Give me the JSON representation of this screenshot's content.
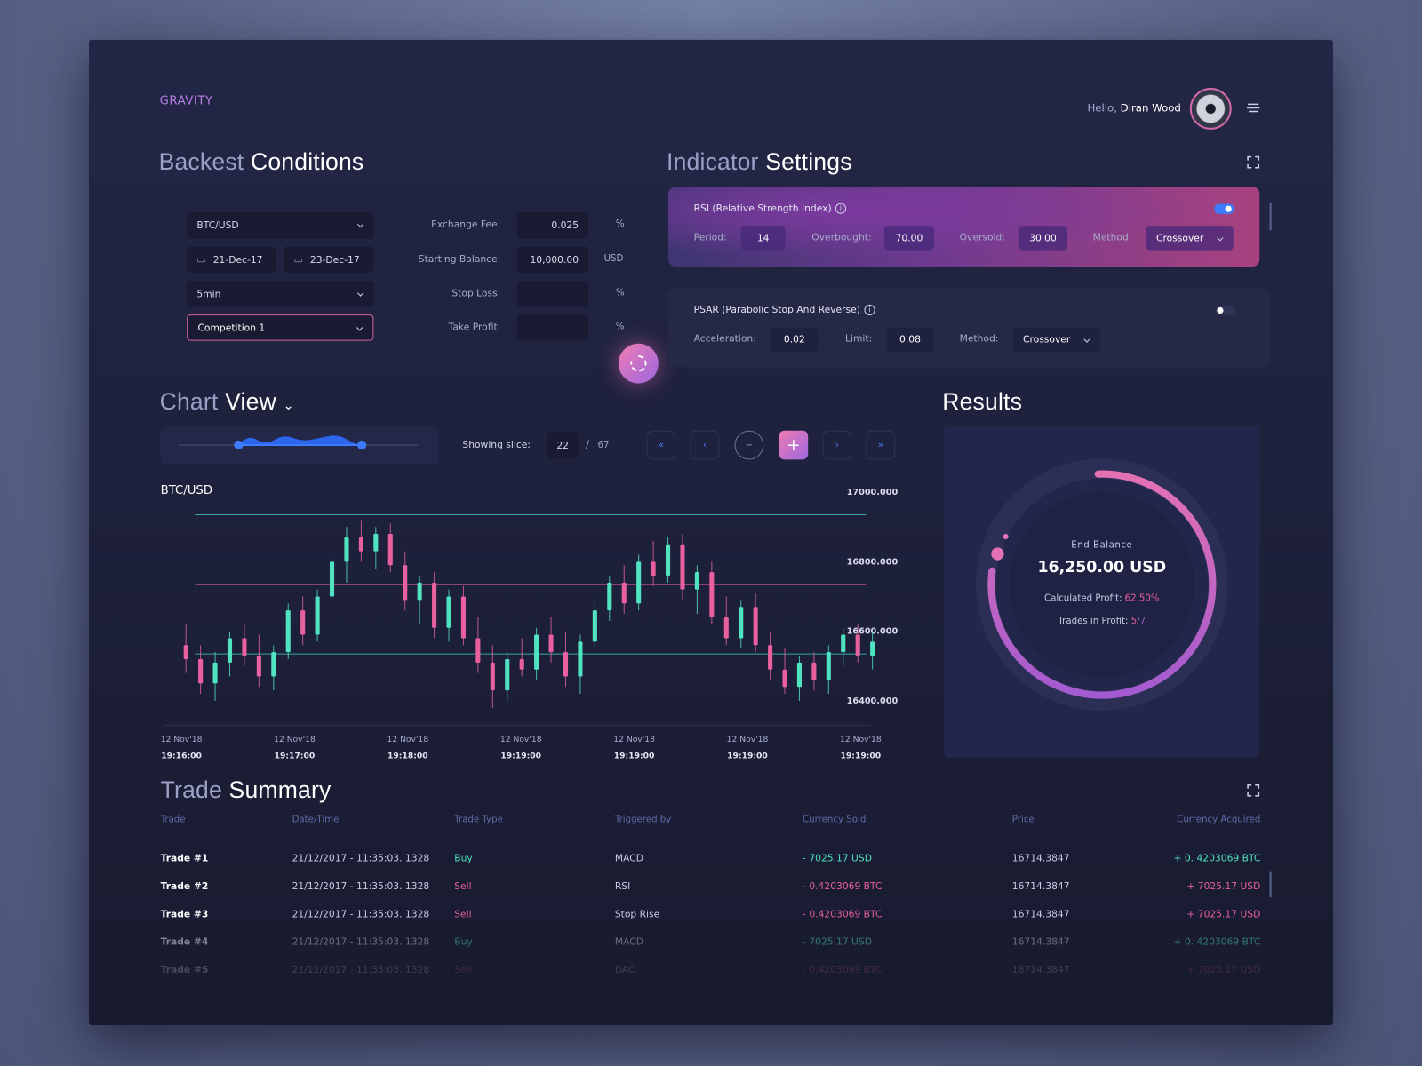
{
  "header": {
    "brand": "GRAVITY",
    "greeting": "Hello,",
    "user": "Diran Wood"
  },
  "backtest": {
    "title_light": "Backest",
    "title_bold": "Conditions",
    "pair": "BTC/USD",
    "date_from": "21-Dec-17",
    "date_to": "23-Dec-17",
    "interval": "5min",
    "competition": "Competition 1",
    "fields": [
      {
        "label": "Exchange Fee:",
        "value": "0.025",
        "unit": "%"
      },
      {
        "label": "Starting Balance:",
        "value": "10,000.00",
        "unit": "USD"
      },
      {
        "label": "Stop Loss:",
        "unit": "%"
      },
      {
        "label": "Take Profit:",
        "unit": "%"
      }
    ]
  },
  "indicators": {
    "title_light": "Indicator",
    "title_bold": "Settings",
    "items": [
      {
        "name": "RSI (Relative Strength Index)",
        "enabled": true,
        "params": [
          {
            "label": "Period:",
            "value": "14"
          },
          {
            "label": "Overbought:",
            "value": "70.00"
          },
          {
            "label": "Oversold:",
            "value": "30.00"
          }
        ],
        "method_label": "Method:",
        "method": "Crossover"
      },
      {
        "name": "PSAR (Parabolic Stop And Reverse)",
        "enabled": false,
        "params": [
          {
            "label": "Acceleration:",
            "value": "0.02"
          },
          {
            "label": "Limit:",
            "value": "0.08"
          }
        ],
        "method_label": "Method:",
        "method": "Crossover"
      }
    ]
  },
  "chart_view": {
    "title_light": "Chart",
    "title_bold": "View",
    "slice_label": "Showing slice:",
    "slice": "22",
    "separator": "/",
    "slice_total": "67"
  },
  "chart_data": {
    "type": "candlestick",
    "title": "BTC/USD",
    "up_color": "#4fe3c1",
    "down_color": "#e8609f",
    "ylim": [
      16330,
      17000
    ],
    "yticks": [
      {
        "value": 17000,
        "label": "17000.000"
      },
      {
        "value": 16800,
        "label": "16800.000"
      },
      {
        "value": 16600,
        "label": "16600.000"
      },
      {
        "value": 16400,
        "label": "16400.000"
      }
    ],
    "xticks": [
      {
        "date": "12 Nov'18",
        "time": "19:16:00"
      },
      {
        "date": "12 Nov'18",
        "time": "19:17:00"
      },
      {
        "date": "12 Nov'18",
        "time": "19:18:00"
      },
      {
        "date": "12 Nov'18",
        "time": "19:19:00"
      },
      {
        "date": "12 Nov'18",
        "time": "19:19:00"
      },
      {
        "date": "12 Nov'18",
        "time": "19:19:00"
      },
      {
        "date": "12 Nov'18",
        "time": "19:19:00"
      }
    ],
    "levels": [
      {
        "value": 16935,
        "color": "#3ec9c0"
      },
      {
        "value": 16735,
        "color": "#d65a98"
      },
      {
        "value": 16535,
        "color": "#3ec9c0"
      }
    ],
    "open": [
      16560,
      16520,
      16450,
      16510,
      16580,
      16530,
      16470,
      16540,
      16660,
      16590,
      16700,
      16800,
      16870,
      16830,
      16880,
      16790,
      16690,
      16740,
      16610,
      16700,
      16580,
      16510,
      16430,
      16520,
      16490,
      16590,
      16540,
      16470,
      16570,
      16660,
      16740,
      16680,
      16800,
      16760,
      16850,
      16720,
      16770,
      16640,
      16580,
      16670,
      16560,
      16490,
      16440,
      16510,
      16460,
      16540,
      16590,
      16530
    ],
    "high": [
      16620,
      16560,
      16540,
      16600,
      16620,
      16590,
      16560,
      16680,
      16700,
      16720,
      16820,
      16900,
      16920,
      16900,
      16910,
      16830,
      16760,
      16770,
      16720,
      16730,
      16640,
      16560,
      16540,
      16580,
      16610,
      16640,
      16600,
      16590,
      16680,
      16760,
      16790,
      16820,
      16860,
      16870,
      16880,
      16790,
      16800,
      16700,
      16690,
      16710,
      16600,
      16550,
      16530,
      16540,
      16560,
      16610,
      16620,
      16600
    ],
    "low": [
      16480,
      16420,
      16400,
      16470,
      16500,
      16440,
      16430,
      16520,
      16560,
      16570,
      16680,
      16740,
      16800,
      16780,
      16770,
      16660,
      16620,
      16580,
      16570,
      16560,
      16480,
      16380,
      16400,
      16470,
      16460,
      16510,
      16440,
      16420,
      16550,
      16630,
      16650,
      16660,
      16730,
      16740,
      16690,
      16650,
      16620,
      16560,
      16550,
      16540,
      16460,
      16420,
      16400,
      16430,
      16420,
      16500,
      16510,
      16490
    ],
    "close": [
      16520,
      16450,
      16510,
      16580,
      16530,
      16470,
      16540,
      16660,
      16590,
      16700,
      16800,
      16870,
      16830,
      16880,
      16790,
      16690,
      16740,
      16610,
      16700,
      16580,
      16510,
      16430,
      16520,
      16490,
      16590,
      16540,
      16470,
      16570,
      16660,
      16740,
      16680,
      16800,
      16760,
      16850,
      16720,
      16770,
      16640,
      16580,
      16670,
      16560,
      16490,
      16440,
      16510,
      16460,
      16540,
      16590,
      16530,
      16570
    ]
  },
  "results": {
    "title": "Results",
    "end_balance_label": "End Balance",
    "end_balance": "16,250.00 USD",
    "profit_label": "Calculated Profit:",
    "profit": "62.50%",
    "trades_label": "Trades in Profit:",
    "trades_won": "5",
    "trades_total": "/7"
  },
  "trade_summary": {
    "title_light": "Trade",
    "title_bold": "Summary",
    "headers": [
      "Trade",
      "Date/Time",
      "Trade Type",
      "Triggered by",
      "Currency Sold",
      "Price",
      "Currency Acquired"
    ],
    "rows": [
      {
        "trade": "Trade #1",
        "datetime": "21/12/2017 - 11:35:03. 1328",
        "type": "Buy",
        "color": "#4fe3c1",
        "trigger": "MACD",
        "sold": "- 7025.17 USD",
        "price": "16714.3847",
        "acquired": "+ 0. 4203069 BTC"
      },
      {
        "trade": "Trade #2",
        "datetime": "21/12/2017 - 11:35:03. 1328",
        "type": "Sell",
        "color": "#e8609f",
        "trigger": "RSI",
        "sold": "- 0.4203069 BTC",
        "price": "16714.3847",
        "acquired": "+ 7025.17 USD"
      },
      {
        "trade": "Trade #3",
        "datetime": "21/12/2017 - 11:35:03. 1328",
        "type": "Sell",
        "color": "#e8609f",
        "trigger": "Stop Rise",
        "sold": "- 0.4203069 BTC",
        "price": "16714.3847",
        "acquired": "+ 7025.17 USD"
      },
      {
        "trade": "Trade #4",
        "datetime": "21/12/2017 - 11:35:03. 1328",
        "type": "Buy",
        "color": "#4fe3c1",
        "trigger": "MACD",
        "sold": "- 7025.17 USD",
        "price": "16714.3847",
        "acquired": "+ 0. 4203069 BTC"
      },
      {
        "trade": "Trade #5",
        "datetime": "21/12/2017 - 11:35:03. 1328",
        "type": "Sell",
        "color": "#e8609f",
        "trigger": "DAC",
        "sold": "- 0.4203069 BTC",
        "price": "16714.3847",
        "acquired": "+ 7025.17 USD"
      }
    ]
  }
}
